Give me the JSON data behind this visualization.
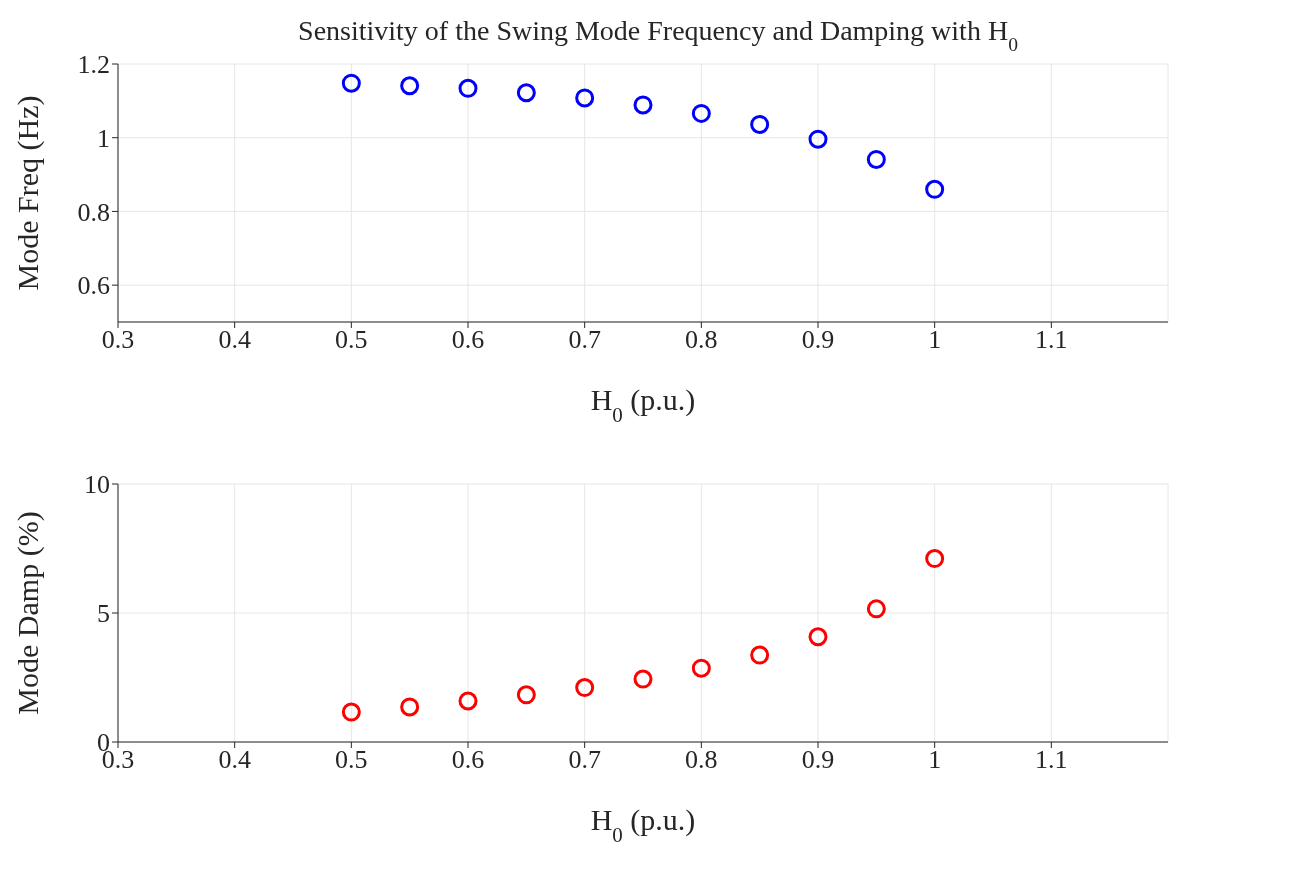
{
  "chart_data": [
    {
      "type": "scatter",
      "title": "Sensitivity of the Swing Mode Frequency and Damping with H$_{0}$",
      "xlabel": "H$_{0}$ (p.u.)",
      "ylabel": "Mode Freq (Hz)",
      "x": [
        0.5,
        0.55,
        0.6,
        0.65,
        0.7,
        0.75,
        0.8,
        0.85,
        0.9,
        0.95,
        1
      ],
      "series": [
        {
          "color": "#0000ff",
          "values": [
            1.148,
            1.141,
            1.134,
            1.122,
            1.108,
            1.089,
            1.066,
            1.036,
            0.996,
            0.941,
            0.86
          ]
        }
      ],
      "xlim": [
        0.3,
        1.2
      ],
      "xticks": [
        0.3,
        0.4,
        0.5,
        0.6,
        0.7,
        0.8,
        0.9,
        1,
        1.1
      ],
      "ylim": [
        0.5,
        1.2
      ],
      "yticks": [
        0.6,
        0.8,
        1,
        1.2
      ],
      "grid": true,
      "marker": "circle"
    },
    {
      "type": "scatter",
      "xlabel": "H$_{0}$ (p.u.)",
      "ylabel": "Mode Damp (%)",
      "x": [
        0.5,
        0.55,
        0.6,
        0.65,
        0.7,
        0.75,
        0.8,
        0.85,
        0.9,
        0.95,
        1
      ],
      "series": [
        {
          "color": "#ff0000",
          "values": [
            1.16,
            1.36,
            1.59,
            1.83,
            2.11,
            2.44,
            2.86,
            3.37,
            4.08,
            5.16,
            7.11
          ]
        }
      ],
      "xlim": [
        0.3,
        1.2
      ],
      "xticks": [
        0.3,
        0.4,
        0.5,
        0.6,
        0.7,
        0.8,
        0.9,
        1,
        1.1
      ],
      "ylim": [
        0,
        10
      ],
      "yticks": [
        0,
        5,
        10
      ],
      "grid": true,
      "marker": "circle"
    }
  ]
}
